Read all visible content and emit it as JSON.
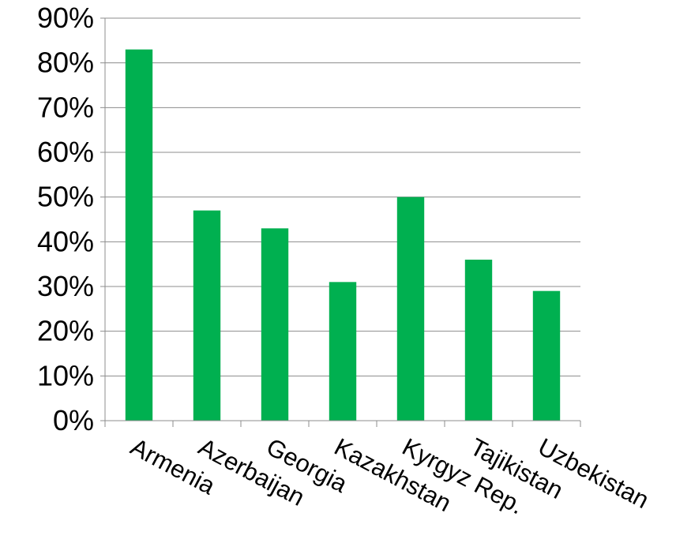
{
  "colors": {
    "bar": "#00b050",
    "grid": "#8c8c8c",
    "text": "#000000",
    "background": "#ffffff"
  },
  "chart_data": {
    "type": "bar",
    "title": "",
    "xlabel": "",
    "ylabel": "",
    "categories": [
      "Armenia",
      "Azerbaijan",
      "Georgia",
      "Kazakhstan",
      "Kyrgyz Rep.",
      "Tajikistan",
      "Uzbekistan"
    ],
    "values": [
      0.83,
      0.47,
      0.43,
      0.31,
      0.5,
      0.36,
      0.29
    ],
    "ylim": [
      0,
      0.9
    ],
    "y_ticks": [
      0,
      0.1,
      0.2,
      0.3,
      0.4,
      0.5,
      0.6,
      0.7,
      0.8,
      0.9
    ],
    "y_tick_labels": [
      "0%",
      "10%",
      "20%",
      "30%",
      "40%",
      "50%",
      "60%",
      "70%",
      "80%",
      "90%"
    ],
    "grid": true,
    "legend": "none"
  }
}
